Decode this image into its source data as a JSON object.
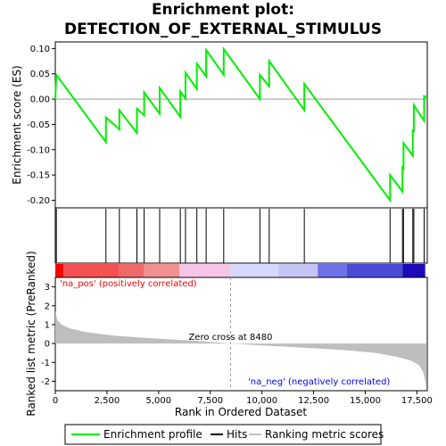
{
  "title_line1": "Enrichment plot:",
  "title_line2": "DETECTION_OF_EXTERNAL_STIMULUS",
  "chart_data": {
    "type": "line",
    "x_label": "Rank in Ordered Dataset",
    "y_label_top": "Enrichment score (ES)",
    "y_label_bottom": "Ranked list metric (PreRanked)",
    "x_range": [
      0,
      18000
    ],
    "x_ticks": [
      0,
      2500,
      5000,
      7500,
      10000,
      12500,
      15000,
      17500
    ],
    "x_tick_labels": [
      "0",
      "2,500",
      "5,000",
      "7,500",
      "10,000",
      "12,500",
      "15,000",
      "17,500"
    ],
    "es_range": [
      -0.215,
      0.113
    ],
    "es_ticks": [
      0.1,
      0.05,
      0.0,
      -0.05,
      -0.1,
      -0.15,
      -0.2
    ],
    "es_tick_labels": [
      "0.10",
      "0.05",
      "0.00",
      "-0.05",
      "-0.10",
      "-0.15",
      "-0.20"
    ],
    "metric_range": [
      -2.5,
      3.5
    ],
    "metric_ticks": [
      3,
      2,
      1,
      0,
      -1,
      -2
    ],
    "metric_tick_labels": [
      "3",
      "2",
      "1",
      "0",
      "-1",
      "-2"
    ],
    "hits": [
      50,
      2450,
      3100,
      3950,
      4300,
      5050,
      6050,
      6300,
      6850,
      7300,
      8150,
      9900,
      10350,
      12050,
      16200,
      16800,
      16850,
      17300,
      17350,
      17850
    ],
    "es_curve": [
      [
        0,
        0.0
      ],
      [
        50,
        0.048
      ],
      [
        2450,
        -0.085
      ],
      [
        2450,
        -0.036
      ],
      [
        3100,
        -0.06
      ],
      [
        3100,
        -0.022
      ],
      [
        3950,
        -0.067
      ],
      [
        3950,
        -0.019
      ],
      [
        4300,
        -0.032
      ],
      [
        4300,
        0.013
      ],
      [
        5050,
        -0.029
      ],
      [
        5050,
        0.022
      ],
      [
        6050,
        -0.035
      ],
      [
        6050,
        0.015
      ],
      [
        6300,
        0.001
      ],
      [
        6300,
        0.052
      ],
      [
        6850,
        0.02
      ],
      [
        6850,
        0.07
      ],
      [
        7300,
        0.045
      ],
      [
        7300,
        0.097
      ],
      [
        8150,
        0.048
      ],
      [
        8150,
        0.099
      ],
      [
        9900,
        0.0
      ],
      [
        9900,
        0.048
      ],
      [
        10350,
        0.025
      ],
      [
        10350,
        0.075
      ],
      [
        12050,
        -0.022
      ],
      [
        12050,
        0.03
      ],
      [
        16200,
        -0.2
      ],
      [
        16200,
        -0.15
      ],
      [
        16800,
        -0.183
      ],
      [
        16800,
        -0.135
      ],
      [
        16850,
        -0.137
      ],
      [
        16850,
        -0.087
      ],
      [
        17300,
        -0.112
      ],
      [
        17300,
        -0.062
      ],
      [
        17350,
        -0.063
      ],
      [
        17350,
        -0.012
      ],
      [
        17850,
        -0.043
      ],
      [
        17850,
        0.006
      ],
      [
        18000,
        0.003
      ]
    ],
    "metric_curve": [
      [
        0,
        1.7
      ],
      [
        100,
        1.25
      ],
      [
        300,
        1.0
      ],
      [
        700,
        0.8
      ],
      [
        1500,
        0.6
      ],
      [
        3000,
        0.4
      ],
      [
        5000,
        0.25
      ],
      [
        7000,
        0.13
      ],
      [
        8480,
        0.0
      ],
      [
        10000,
        -0.1
      ],
      [
        12000,
        -0.22
      ],
      [
        14000,
        -0.35
      ],
      [
        15500,
        -0.5
      ],
      [
        16500,
        -0.7
      ],
      [
        17200,
        -0.9
      ],
      [
        17600,
        -1.15
      ],
      [
        17800,
        -1.5
      ],
      [
        17900,
        -1.95
      ],
      [
        17950,
        -2.35
      ]
    ],
    "zero_cross_label": "Zero cross at 8480",
    "zero_cross_x": 8480,
    "pos_label": "'na_pos' (positively correlated)",
    "neg_label": "'na_neg' (negatively correlated)",
    "heat_segments": [
      [
        0,
        400,
        "#ff0000"
      ],
      [
        400,
        3100,
        "#f55050"
      ],
      [
        3100,
        4300,
        "#f06a6a"
      ],
      [
        4300,
        6000,
        "#f09090"
      ],
      [
        6000,
        8480,
        "#f8c4e6"
      ],
      [
        8480,
        10800,
        "#d8d8ff"
      ],
      [
        10800,
        12700,
        "#c4c4f5"
      ],
      [
        12700,
        14100,
        "#7070e8"
      ],
      [
        14100,
        16800,
        "#4a4ad8"
      ],
      [
        16800,
        17900,
        "#1a0ab8"
      ]
    ],
    "legend": [
      {
        "label": "Enrichment profile",
        "color": "#00ee00"
      },
      {
        "label": "Hits",
        "color": "#000000"
      },
      {
        "label": "Ranking metric scores",
        "color": "#c0c0c0"
      }
    ],
    "colors": {
      "es_line": "#00ee00",
      "metric_fill": "#bebebe",
      "pos_label": "#ff0000",
      "neg_label": "#0000ff"
    }
  }
}
